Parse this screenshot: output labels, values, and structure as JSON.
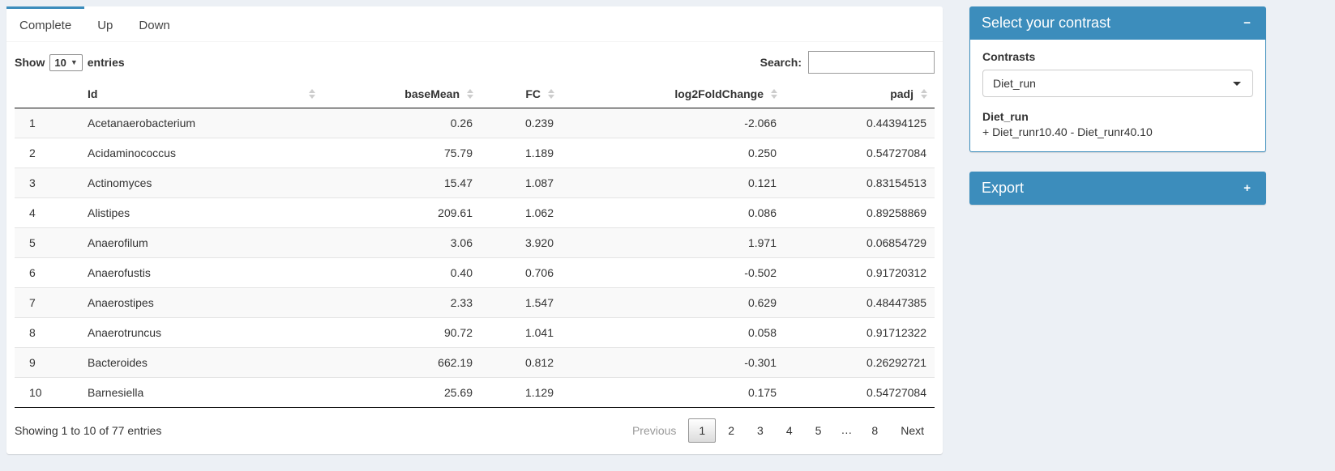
{
  "colors": {
    "accent": "#3c8dbc",
    "page_bg": "#ecf0f5",
    "stripe": "#f9f9f9"
  },
  "tabs": [
    {
      "label": "Complete",
      "active": true
    },
    {
      "label": "Up",
      "active": false
    },
    {
      "label": "Down",
      "active": false
    }
  ],
  "table_controls": {
    "show_label": "Show",
    "length_value": "10",
    "entries_label": "entries",
    "search_label": "Search:",
    "search_value": ""
  },
  "table": {
    "columns": [
      {
        "label": "",
        "align": "left",
        "sortable": false
      },
      {
        "label": "Id",
        "align": "left",
        "sortable": true
      },
      {
        "label": "baseMean",
        "align": "right",
        "sortable": true
      },
      {
        "label": "FC",
        "align": "right",
        "sortable": true
      },
      {
        "label": "log2FoldChange",
        "align": "right",
        "sortable": true
      },
      {
        "label": "padj",
        "align": "right",
        "sortable": true
      }
    ],
    "rows": [
      {
        "num": "1",
        "id": "Acetanaerobacterium",
        "baseMean": "0.26",
        "fc": "0.239",
        "log2fc": "-2.066",
        "padj": "0.44394125"
      },
      {
        "num": "2",
        "id": "Acidaminococcus",
        "baseMean": "75.79",
        "fc": "1.189",
        "log2fc": "0.250",
        "padj": "0.54727084"
      },
      {
        "num": "3",
        "id": "Actinomyces",
        "baseMean": "15.47",
        "fc": "1.087",
        "log2fc": "0.121",
        "padj": "0.83154513"
      },
      {
        "num": "4",
        "id": "Alistipes",
        "baseMean": "209.61",
        "fc": "1.062",
        "log2fc": "0.086",
        "padj": "0.89258869"
      },
      {
        "num": "5",
        "id": "Anaerofilum",
        "baseMean": "3.06",
        "fc": "3.920",
        "log2fc": "1.971",
        "padj": "0.06854729"
      },
      {
        "num": "6",
        "id": "Anaerofustis",
        "baseMean": "0.40",
        "fc": "0.706",
        "log2fc": "-0.502",
        "padj": "0.91720312"
      },
      {
        "num": "7",
        "id": "Anaerostipes",
        "baseMean": "2.33",
        "fc": "1.547",
        "log2fc": "0.629",
        "padj": "0.48447385"
      },
      {
        "num": "8",
        "id": "Anaerotruncus",
        "baseMean": "90.72",
        "fc": "1.041",
        "log2fc": "0.058",
        "padj": "0.91712322"
      },
      {
        "num": "9",
        "id": "Bacteroides",
        "baseMean": "662.19",
        "fc": "0.812",
        "log2fc": "-0.301",
        "padj": "0.26292721"
      },
      {
        "num": "10",
        "id": "Barnesiella",
        "baseMean": "25.69",
        "fc": "1.129",
        "log2fc": "0.175",
        "padj": "0.54727084"
      }
    ],
    "info": "Showing 1 to 10 of 77 entries",
    "pagination": {
      "previous": "Previous",
      "pages": [
        "1",
        "2",
        "3",
        "4",
        "5",
        "…",
        "8"
      ],
      "current": "1",
      "next": "Next"
    }
  },
  "contrast_panel": {
    "title": "Select your contrast",
    "collapse_icon": "−",
    "contrasts_label": "Contrasts",
    "selected_contrast": "Diet_run",
    "contrast_name": "Diet_run",
    "contrast_formula": "+ Diet_runr10.40 - Diet_runr40.10"
  },
  "export_panel": {
    "title": "Export",
    "expand_icon": "+"
  }
}
